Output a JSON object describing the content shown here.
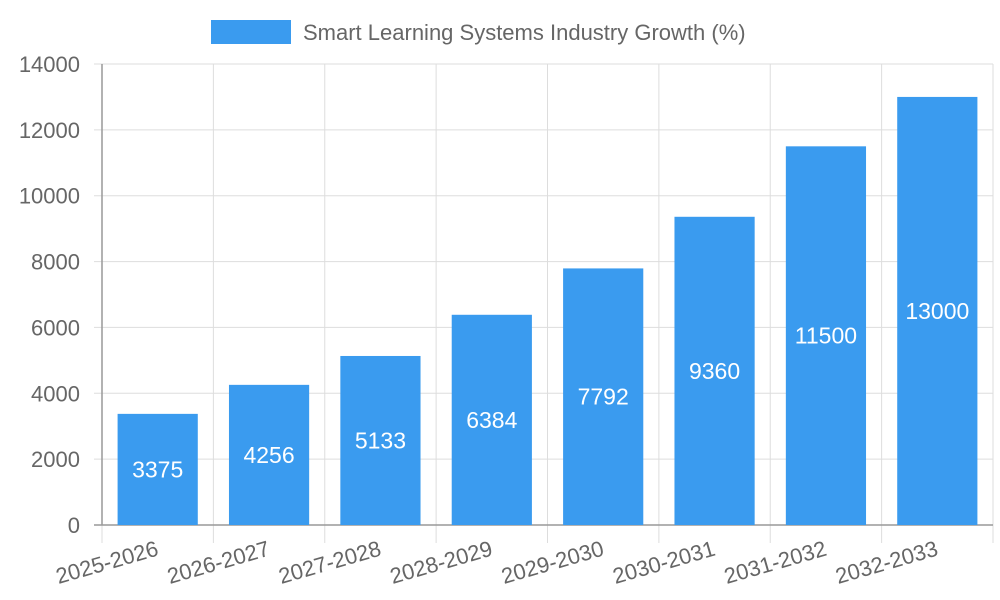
{
  "chart_data": {
    "type": "bar",
    "categories": [
      "2025-2026",
      "2026-2027",
      "2027-2028",
      "2028-2029",
      "2029-2030",
      "2030-2031",
      "2031-2032",
      "2032-2033"
    ],
    "series": [
      {
        "name": "Smart Learning Systems Industry Growth (%)",
        "values": [
          3375,
          4256,
          5133,
          6384,
          7792,
          9360,
          11500,
          13000
        ]
      }
    ],
    "ylim": [
      0,
      14000
    ],
    "yticks": [
      "0",
      "2000",
      "4000",
      "6000",
      "8000",
      "10000",
      "12000",
      "14000"
    ],
    "grid": true,
    "legend_position": "top-center",
    "data_labels": [
      "3375",
      "4256",
      "5133",
      "6384",
      "7792",
      "9360",
      "11500",
      "13000"
    ],
    "colors": {
      "bar": "#3a9bef",
      "grid": "#dddddd",
      "axis": "#999999",
      "text": "#666666",
      "label": "#ffffff"
    }
  }
}
